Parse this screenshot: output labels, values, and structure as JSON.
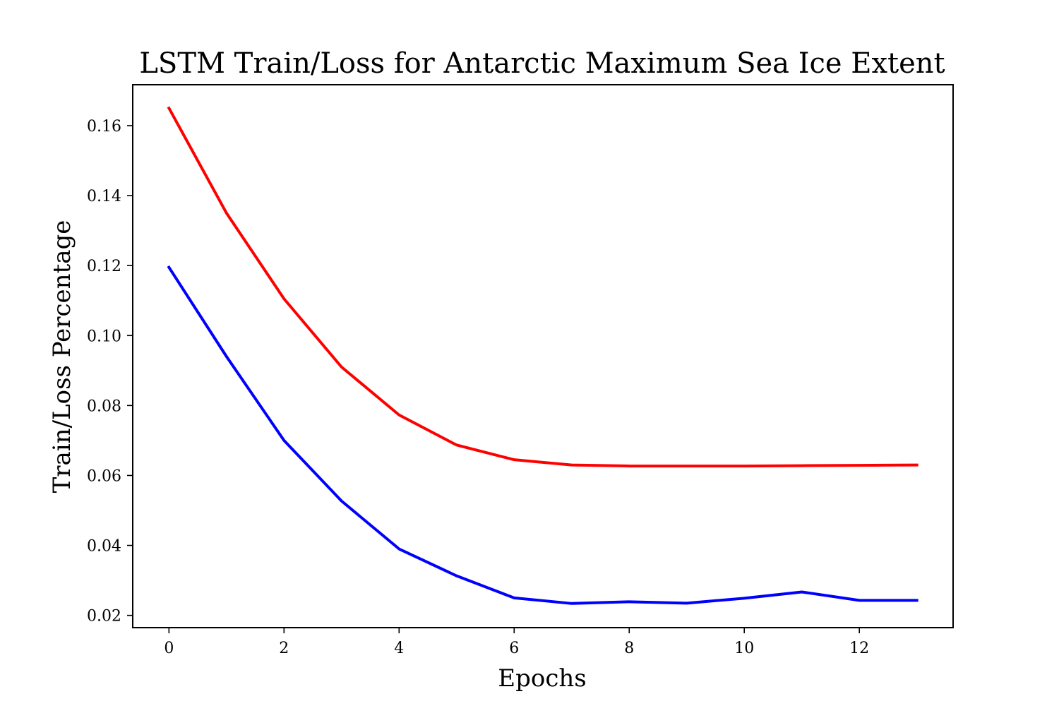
{
  "chart_data": {
    "type": "line",
    "title": "LSTM Train/Loss for Antarctic Maximum Sea Ice Extent",
    "xlabel": "Epochs",
    "ylabel": "Train/Loss Percentage",
    "xlim": [
      -0.63,
      13.63
    ],
    "ylim": [
      0.0165,
      0.1717
    ],
    "x_ticks": [
      0,
      2,
      4,
      6,
      8,
      10,
      12
    ],
    "x_tick_labels": [
      "0",
      "2",
      "4",
      "6",
      "8",
      "10",
      "12"
    ],
    "y_ticks": [
      0.02,
      0.04,
      0.06,
      0.08,
      0.1,
      0.12,
      0.14,
      0.16
    ],
    "y_tick_labels": [
      "0.02",
      "0.04",
      "0.06",
      "0.08",
      "0.10",
      "0.12",
      "0.14",
      "0.16"
    ],
    "grid": false,
    "x": [
      0,
      1,
      2,
      3,
      4,
      5,
      6,
      7,
      8,
      9,
      10,
      11,
      12,
      13
    ],
    "series": [
      {
        "color": "#ff0000",
        "values": [
          0.165,
          0.135,
          0.1105,
          0.091,
          0.0773,
          0.0687,
          0.0645,
          0.063,
          0.0627,
          0.0627,
          0.0627,
          0.0628,
          0.0629,
          0.063
        ]
      },
      {
        "color": "#0000ff",
        "values": [
          0.1195,
          0.094,
          0.07,
          0.0527,
          0.039,
          0.0313,
          0.025,
          0.0234,
          0.0239,
          0.0235,
          0.0249,
          0.0267,
          0.0243,
          0.0243
        ]
      }
    ]
  }
}
